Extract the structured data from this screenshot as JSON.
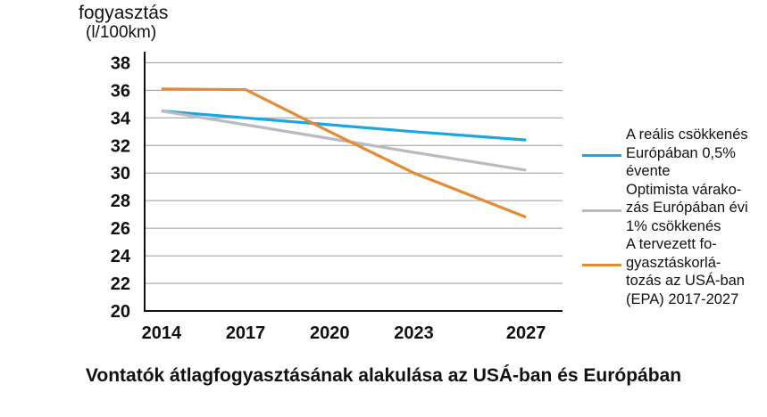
{
  "chart_data": {
    "type": "line",
    "ylabel": "fogyasztás",
    "yunit": "(l/100km)",
    "caption": "Vontatók átlagfogyasztásának alakulása az USÁ-ban és Európában",
    "x_ticks": [
      2014,
      2017,
      2020,
      2023,
      2027
    ],
    "y_ticks": [
      20,
      22,
      24,
      26,
      28,
      30,
      32,
      34,
      36,
      38
    ],
    "xlim": [
      2013.4,
      2028.3
    ],
    "ylim": [
      20,
      38.8
    ],
    "grid": true,
    "legend_position": "right",
    "series": [
      {
        "name": "A reális csökkenés Európában 0,5% évente",
        "name_lines": [
          "A reális csökkenés",
          "Európában 0,5%",
          "évente"
        ],
        "color": "#1aa7e0",
        "x": [
          2014,
          2017,
          2020,
          2023,
          2027
        ],
        "y": [
          34.5,
          34.0,
          33.5,
          33.0,
          32.4
        ]
      },
      {
        "name": "Optimista várakozás Európában évi 1% csökkenés",
        "name_lines": [
          "Optimista várako-",
          "zás Európában évi",
          "1% csökkenés"
        ],
        "color": "#b9bac2",
        "x": [
          2014,
          2017,
          2020,
          2023,
          2027
        ],
        "y": [
          34.5,
          33.5,
          32.5,
          31.5,
          30.2
        ]
      },
      {
        "name": "A tervezett fogyasztáskorlátozás az USÁ-ban (EPA) 2017-2027",
        "name_lines": [
          "A tervezett fo-",
          "gyasztáskorlá-",
          "tozás az USÁ-ban",
          "(EPA) 2017-2027"
        ],
        "color": "#e68a36",
        "x": [
          2014,
          2017,
          2020,
          2023,
          2027
        ],
        "y": [
          36.1,
          36.05,
          33.0,
          30.0,
          26.8
        ]
      }
    ]
  }
}
